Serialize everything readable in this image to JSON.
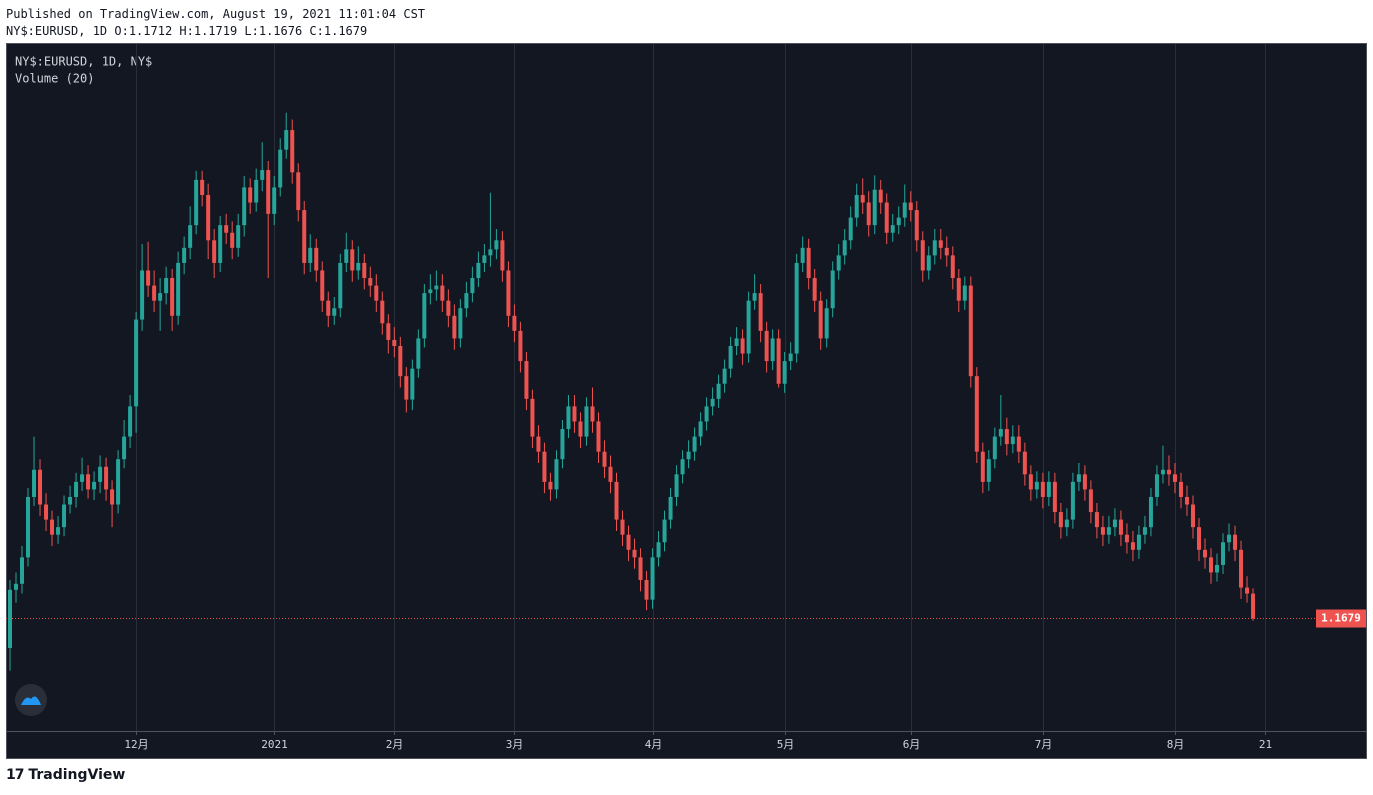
{
  "header": {
    "published": "Published on TradingView.com, August 19, 2021 11:01:04 CST",
    "quote": "NY$:EURUSD, 1D O:1.1712 H:1.1719 L:1.1676 C:1.1679"
  },
  "footer": {
    "brand": "TradingView"
  },
  "chart_data": {
    "type": "candlestick",
    "legend": [
      "NY$:EURUSD, 1D, NY$",
      "Volume (20)"
    ],
    "up_color": "#26a69a",
    "down_color": "#ef5350",
    "grid": true,
    "ylim": [
      1.153,
      1.244
    ],
    "categories": [
      null,
      null,
      null,
      null,
      null,
      null,
      null,
      null,
      null,
      null,
      null,
      null,
      null,
      null,
      null,
      null,
      null,
      null,
      null,
      null,
      null,
      "12月",
      null,
      null,
      null,
      null,
      null,
      null,
      null,
      null,
      null,
      null,
      null,
      null,
      null,
      null,
      null,
      null,
      null,
      null,
      null,
      null,
      null,
      null,
      "2021",
      null,
      null,
      null,
      null,
      null,
      null,
      null,
      null,
      null,
      null,
      null,
      null,
      null,
      null,
      null,
      null,
      null,
      null,
      null,
      "2月",
      null,
      null,
      null,
      null,
      null,
      null,
      null,
      null,
      null,
      null,
      null,
      null,
      null,
      null,
      null,
      null,
      null,
      null,
      null,
      "3月",
      null,
      null,
      null,
      null,
      null,
      null,
      null,
      null,
      null,
      null,
      null,
      null,
      null,
      null,
      null,
      null,
      null,
      null,
      null,
      null,
      null,
      null,
      "4月",
      null,
      null,
      null,
      null,
      null,
      null,
      null,
      null,
      null,
      null,
      null,
      null,
      null,
      null,
      null,
      null,
      null,
      null,
      null,
      null,
      null,
      "5月",
      null,
      null,
      null,
      null,
      null,
      null,
      null,
      null,
      null,
      null,
      null,
      null,
      null,
      null,
      null,
      null,
      null,
      null,
      null,
      null,
      "6月",
      null,
      null,
      null,
      null,
      null,
      null,
      null,
      null,
      null,
      null,
      null,
      null,
      null,
      null,
      null,
      null,
      null,
      null,
      null,
      null,
      null,
      "7月",
      null,
      null,
      null,
      null,
      null,
      null,
      null,
      null,
      null,
      null,
      null,
      null,
      null,
      null,
      null,
      null,
      null,
      null,
      null,
      null,
      null,
      "8月",
      null,
      null,
      null,
      null,
      null,
      null,
      null,
      null,
      null,
      null,
      null,
      null,
      null,
      null,
      "21"
    ],
    "candles": [
      [
        1.164,
        1.173,
        1.161,
        1.1717
      ],
      [
        1.1717,
        1.174,
        1.17,
        1.1725
      ],
      [
        1.1725,
        1.1775,
        1.1712,
        1.176
      ],
      [
        1.176,
        1.1852,
        1.1748,
        1.184
      ],
      [
        1.184,
        1.192,
        1.1828,
        1.1876
      ],
      [
        1.1876,
        1.189,
        1.1815,
        1.183
      ],
      [
        1.183,
        1.1845,
        1.1795,
        1.181
      ],
      [
        1.181,
        1.1822,
        1.1775,
        1.179
      ],
      [
        1.179,
        1.1815,
        1.1778,
        1.18
      ],
      [
        1.18,
        1.1842,
        1.1788,
        1.183
      ],
      [
        1.183,
        1.1855,
        1.1818,
        1.184
      ],
      [
        1.184,
        1.1872,
        1.1826,
        1.186
      ],
      [
        1.186,
        1.1892,
        1.1848,
        1.187
      ],
      [
        1.187,
        1.1882,
        1.1838,
        1.185
      ],
      [
        1.185,
        1.1874,
        1.1836,
        1.186
      ],
      [
        1.186,
        1.1895,
        1.1845,
        1.188
      ],
      [
        1.188,
        1.1892,
        1.1835,
        1.185
      ],
      [
        1.185,
        1.1862,
        1.18,
        1.183
      ],
      [
        1.183,
        1.1902,
        1.1818,
        1.189
      ],
      [
        1.189,
        1.1942,
        1.1878,
        1.192
      ],
      [
        1.192,
        1.1975,
        1.1905,
        1.196
      ],
      [
        1.196,
        1.2085,
        1.1925,
        1.2075
      ],
      [
        1.2075,
        1.2175,
        1.206,
        1.214
      ],
      [
        1.214,
        1.2178,
        1.2105,
        1.212
      ],
      [
        1.212,
        1.214,
        1.2085,
        1.21
      ],
      [
        1.21,
        1.213,
        1.206,
        1.211
      ],
      [
        1.211,
        1.2145,
        1.2095,
        1.213
      ],
      [
        1.213,
        1.2142,
        1.206,
        1.208
      ],
      [
        1.208,
        1.2165,
        1.2068,
        1.215
      ],
      [
        1.215,
        1.2185,
        1.2135,
        1.217
      ],
      [
        1.217,
        1.2225,
        1.2155,
        1.22
      ],
      [
        1.22,
        1.2272,
        1.2188,
        1.226
      ],
      [
        1.226,
        1.2272,
        1.2225,
        1.224
      ],
      [
        1.224,
        1.2255,
        1.2155,
        1.218
      ],
      [
        1.218,
        1.2195,
        1.213,
        1.215
      ],
      [
        1.215,
        1.2212,
        1.2138,
        1.22
      ],
      [
        1.22,
        1.2215,
        1.2175,
        1.219
      ],
      [
        1.219,
        1.2205,
        1.2155,
        1.217
      ],
      [
        1.217,
        1.2215,
        1.2158,
        1.22
      ],
      [
        1.22,
        1.2265,
        1.2185,
        1.225
      ],
      [
        1.225,
        1.2262,
        1.2215,
        1.223
      ],
      [
        1.223,
        1.2275,
        1.2218,
        1.226
      ],
      [
        1.226,
        1.231,
        1.2245,
        1.2273
      ],
      [
        1.2273,
        1.2285,
        1.213,
        1.2215
      ],
      [
        1.2215,
        1.2265,
        1.22,
        1.225
      ],
      [
        1.225,
        1.2315,
        1.2238,
        1.23
      ],
      [
        1.23,
        1.2349,
        1.2288,
        1.2326
      ],
      [
        1.2326,
        1.234,
        1.2255,
        1.227
      ],
      [
        1.227,
        1.2282,
        1.2205,
        1.222
      ],
      [
        1.222,
        1.2232,
        1.2135,
        1.215
      ],
      [
        1.215,
        1.2188,
        1.2138,
        1.217
      ],
      [
        1.217,
        1.2182,
        1.2125,
        1.214
      ],
      [
        1.214,
        1.2152,
        1.2085,
        1.21
      ],
      [
        1.21,
        1.2112,
        1.2065,
        1.208
      ],
      [
        1.208,
        1.2105,
        1.2068,
        1.209
      ],
      [
        1.209,
        1.2162,
        1.2078,
        1.215
      ],
      [
        1.215,
        1.219,
        1.2138,
        1.2168
      ],
      [
        1.2168,
        1.218,
        1.2125,
        1.214
      ],
      [
        1.214,
        1.2172,
        1.2128,
        1.215
      ],
      [
        1.215,
        1.2162,
        1.2115,
        1.213
      ],
      [
        1.213,
        1.2145,
        1.2105,
        1.212
      ],
      [
        1.212,
        1.2135,
        1.2085,
        1.21
      ],
      [
        1.21,
        1.2112,
        1.2055,
        1.207
      ],
      [
        1.207,
        1.2082,
        1.203,
        1.2048
      ],
      [
        1.2048,
        1.2065,
        1.2025,
        1.204
      ],
      [
        1.204,
        1.2052,
        1.1985,
        1.2
      ],
      [
        1.2,
        1.2012,
        1.1952,
        1.1969
      ],
      [
        1.1969,
        1.2022,
        1.1955,
        1.201
      ],
      [
        1.201,
        1.2062,
        1.1998,
        1.205
      ],
      [
        1.205,
        1.2122,
        1.2038,
        1.211
      ],
      [
        1.211,
        1.2135,
        1.2095,
        1.2115
      ],
      [
        1.2115,
        1.214,
        1.21,
        1.212
      ],
      [
        1.212,
        1.2135,
        1.2085,
        1.21
      ],
      [
        1.21,
        1.2115,
        1.2065,
        1.208
      ],
      [
        1.208,
        1.2095,
        1.2035,
        1.205
      ],
      [
        1.205,
        1.2102,
        1.2038,
        1.209
      ],
      [
        1.209,
        1.2125,
        1.2078,
        1.211
      ],
      [
        1.211,
        1.2145,
        1.2098,
        1.213
      ],
      [
        1.213,
        1.2165,
        1.2118,
        1.215
      ],
      [
        1.215,
        1.2175,
        1.2138,
        1.216
      ],
      [
        1.216,
        1.2243,
        1.2145,
        1.2168
      ],
      [
        1.2168,
        1.2195,
        1.2155,
        1.218
      ],
      [
        1.218,
        1.2192,
        1.2125,
        1.214
      ],
      [
        1.214,
        1.2152,
        1.2065,
        1.208
      ],
      [
        1.208,
        1.2095,
        1.2045,
        1.206
      ],
      [
        1.206,
        1.2072,
        1.2005,
        1.202
      ],
      [
        1.202,
        1.2032,
        1.1955,
        1.197
      ],
      [
        1.197,
        1.1982,
        1.1905,
        1.192
      ],
      [
        1.192,
        1.1935,
        1.1885,
        1.19
      ],
      [
        1.19,
        1.1912,
        1.1845,
        1.186
      ],
      [
        1.186,
        1.1872,
        1.1835,
        1.185
      ],
      [
        1.185,
        1.1902,
        1.1838,
        1.189
      ],
      [
        1.189,
        1.1942,
        1.1878,
        1.193
      ],
      [
        1.193,
        1.1975,
        1.1918,
        1.196
      ],
      [
        1.196,
        1.1975,
        1.1925,
        1.194
      ],
      [
        1.194,
        1.1952,
        1.1905,
        1.192
      ],
      [
        1.192,
        1.1972,
        1.1908,
        1.196
      ],
      [
        1.196,
        1.1985,
        1.1925,
        1.194
      ],
      [
        1.194,
        1.1952,
        1.1885,
        1.19
      ],
      [
        1.19,
        1.1915,
        1.1865,
        1.188
      ],
      [
        1.188,
        1.1895,
        1.1845,
        1.186
      ],
      [
        1.186,
        1.1872,
        1.1795,
        1.181
      ],
      [
        1.181,
        1.1822,
        1.1775,
        1.179
      ],
      [
        1.179,
        1.1802,
        1.1755,
        1.177
      ],
      [
        1.177,
        1.1785,
        1.1745,
        1.176
      ],
      [
        1.176,
        1.1772,
        1.1715,
        1.173
      ],
      [
        1.173,
        1.1742,
        1.169,
        1.1704
      ],
      [
        1.1704,
        1.1772,
        1.1692,
        1.176
      ],
      [
        1.176,
        1.1795,
        1.1748,
        1.178
      ],
      [
        1.178,
        1.1822,
        1.1768,
        1.181
      ],
      [
        1.181,
        1.1852,
        1.1798,
        1.184
      ],
      [
        1.184,
        1.1882,
        1.1828,
        1.187
      ],
      [
        1.187,
        1.1902,
        1.1858,
        1.189
      ],
      [
        1.189,
        1.1915,
        1.1878,
        1.19
      ],
      [
        1.19,
        1.1932,
        1.1888,
        1.192
      ],
      [
        1.192,
        1.1952,
        1.1908,
        1.194
      ],
      [
        1.194,
        1.1972,
        1.1928,
        1.196
      ],
      [
        1.196,
        1.1985,
        1.1948,
        1.197
      ],
      [
        1.197,
        1.2002,
        1.1958,
        1.199
      ],
      [
        1.199,
        1.2022,
        1.1978,
        1.201
      ],
      [
        1.201,
        1.2052,
        1.1998,
        1.204
      ],
      [
        1.204,
        1.2065,
        1.2028,
        1.205
      ],
      [
        1.205,
        1.2062,
        1.2015,
        1.203
      ],
      [
        1.203,
        1.2112,
        1.2018,
        1.21
      ],
      [
        1.21,
        1.2135,
        1.2088,
        1.211
      ],
      [
        1.211,
        1.2122,
        1.2045,
        1.206
      ],
      [
        1.206,
        1.2072,
        1.2005,
        1.202
      ],
      [
        1.202,
        1.2062,
        1.2008,
        1.205
      ],
      [
        1.205,
        1.2062,
        1.1985,
        1.199
      ],
      [
        1.199,
        1.2032,
        1.1978,
        1.202
      ],
      [
        1.202,
        1.2045,
        1.2008,
        1.203
      ],
      [
        1.203,
        1.2162,
        1.2018,
        1.215
      ],
      [
        1.215,
        1.2185,
        1.2138,
        1.217
      ],
      [
        1.217,
        1.2182,
        1.2115,
        1.213
      ],
      [
        1.213,
        1.2142,
        1.2085,
        1.21
      ],
      [
        1.21,
        1.2112,
        1.2035,
        1.205
      ],
      [
        1.205,
        1.2102,
        1.2038,
        1.209
      ],
      [
        1.209,
        1.2152,
        1.2078,
        1.214
      ],
      [
        1.214,
        1.2175,
        1.2128,
        1.216
      ],
      [
        1.216,
        1.2195,
        1.2148,
        1.218
      ],
      [
        1.218,
        1.2225,
        1.2168,
        1.221
      ],
      [
        1.221,
        1.2255,
        1.2198,
        1.224
      ],
      [
        1.224,
        1.2262,
        1.2215,
        1.223
      ],
      [
        1.223,
        1.2245,
        1.2185,
        1.22
      ],
      [
        1.22,
        1.2266,
        1.2188,
        1.2247
      ],
      [
        1.2247,
        1.226,
        1.2215,
        1.223
      ],
      [
        1.223,
        1.2242,
        1.2175,
        1.219
      ],
      [
        1.219,
        1.2215,
        1.2178,
        1.22
      ],
      [
        1.22,
        1.2225,
        1.2188,
        1.221
      ],
      [
        1.221,
        1.2254,
        1.2198,
        1.223
      ],
      [
        1.223,
        1.2245,
        1.2205,
        1.222
      ],
      [
        1.222,
        1.2232,
        1.2165,
        1.218
      ],
      [
        1.218,
        1.2192,
        1.2125,
        1.214
      ],
      [
        1.214,
        1.2172,
        1.2128,
        1.216
      ],
      [
        1.216,
        1.2195,
        1.2148,
        1.218
      ],
      [
        1.218,
        1.2195,
        1.2155,
        1.217
      ],
      [
        1.217,
        1.2185,
        1.2145,
        1.216
      ],
      [
        1.216,
        1.2172,
        1.2115,
        1.213
      ],
      [
        1.213,
        1.2142,
        1.2085,
        1.21
      ],
      [
        1.21,
        1.2132,
        1.2088,
        1.212
      ],
      [
        1.212,
        1.2132,
        1.1985,
        1.2
      ],
      [
        1.2,
        1.2012,
        1.1885,
        1.19
      ],
      [
        1.19,
        1.1912,
        1.1845,
        1.186
      ],
      [
        1.186,
        1.1902,
        1.1848,
        1.189
      ],
      [
        1.189,
        1.1932,
        1.1878,
        1.192
      ],
      [
        1.192,
        1.1975,
        1.1908,
        1.193
      ],
      [
        1.193,
        1.1945,
        1.1895,
        1.191
      ],
      [
        1.191,
        1.1935,
        1.1898,
        1.192
      ],
      [
        1.192,
        1.1935,
        1.1885,
        1.19
      ],
      [
        1.19,
        1.1912,
        1.1855,
        1.187
      ],
      [
        1.187,
        1.1882,
        1.1835,
        1.185
      ],
      [
        1.185,
        1.1874,
        1.1838,
        1.186
      ],
      [
        1.186,
        1.1872,
        1.1825,
        1.184
      ],
      [
        1.184,
        1.1874,
        1.1828,
        1.186
      ],
      [
        1.186,
        1.1872,
        1.1805,
        1.182
      ],
      [
        1.182,
        1.1832,
        1.1785,
        1.18
      ],
      [
        1.18,
        1.1825,
        1.1788,
        1.181
      ],
      [
        1.181,
        1.1872,
        1.1798,
        1.186
      ],
      [
        1.186,
        1.1885,
        1.1848,
        1.187
      ],
      [
        1.187,
        1.1882,
        1.1835,
        1.185
      ],
      [
        1.185,
        1.1862,
        1.1805,
        1.182
      ],
      [
        1.182,
        1.1832,
        1.1785,
        1.18
      ],
      [
        1.18,
        1.1815,
        1.1775,
        1.179
      ],
      [
        1.179,
        1.1815,
        1.1778,
        1.18
      ],
      [
        1.18,
        1.1825,
        1.1788,
        1.181
      ],
      [
        1.181,
        1.1822,
        1.1775,
        1.179
      ],
      [
        1.179,
        1.1805,
        1.1765,
        1.178
      ],
      [
        1.178,
        1.1795,
        1.1755,
        1.177
      ],
      [
        1.177,
        1.1802,
        1.1758,
        1.179
      ],
      [
        1.179,
        1.1815,
        1.1778,
        1.18
      ],
      [
        1.18,
        1.1852,
        1.1788,
        1.184
      ],
      [
        1.184,
        1.1882,
        1.1828,
        1.187
      ],
      [
        1.187,
        1.1908,
        1.1858,
        1.1876
      ],
      [
        1.1876,
        1.1895,
        1.1855,
        1.187
      ],
      [
        1.187,
        1.1885,
        1.1845,
        1.186
      ],
      [
        1.186,
        1.1872,
        1.1825,
        1.184
      ],
      [
        1.184,
        1.1855,
        1.1815,
        1.183
      ],
      [
        1.183,
        1.1842,
        1.1785,
        1.18
      ],
      [
        1.18,
        1.1812,
        1.1755,
        1.177
      ],
      [
        1.177,
        1.1785,
        1.1745,
        1.176
      ],
      [
        1.176,
        1.1772,
        1.1725,
        1.174
      ],
      [
        1.174,
        1.1765,
        1.1728,
        1.175
      ],
      [
        1.175,
        1.1792,
        1.1738,
        1.178
      ],
      [
        1.178,
        1.1805,
        1.1768,
        1.179
      ],
      [
        1.179,
        1.1802,
        1.1755,
        1.177
      ],
      [
        1.177,
        1.1782,
        1.1705,
        1.172
      ],
      [
        1.172,
        1.1735,
        1.17,
        1.1712
      ],
      [
        1.1712,
        1.1719,
        1.1676,
        1.1679
      ],
      null,
      null
    ]
  }
}
